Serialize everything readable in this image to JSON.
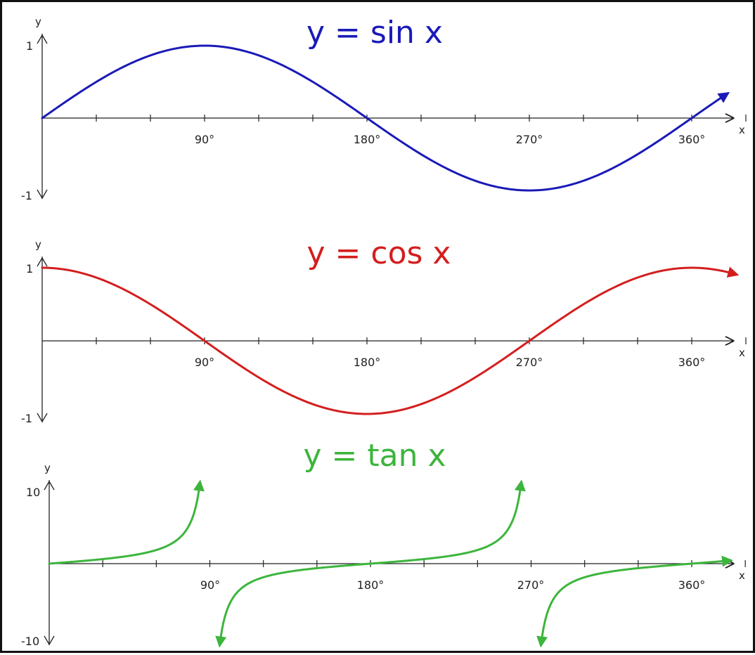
{
  "chart_data": [
    {
      "type": "line",
      "title": "y = sin x",
      "color": "#1a1ab8",
      "function": "sin",
      "xlabel": "x",
      "ylabel": "y",
      "xlim": [
        0,
        405
      ],
      "ylim": [
        -1,
        1
      ],
      "x_ticks": [
        90,
        180,
        270,
        360
      ],
      "x_tick_labels": [
        "90°",
        "180°",
        "270°",
        "360°"
      ],
      "y_tick_labels": [
        "1",
        "-1"
      ],
      "x": [
        0,
        30,
        60,
        90,
        120,
        150,
        180,
        210,
        240,
        270,
        300,
        330,
        360,
        380
      ],
      "y": [
        0,
        0.5,
        0.87,
        1,
        0.87,
        0.5,
        0,
        -0.5,
        -0.87,
        -1,
        -0.87,
        -0.5,
        0,
        0.34
      ]
    },
    {
      "type": "line",
      "title": "y = cos x",
      "color": "#d41e1e",
      "function": "cos",
      "xlabel": "x",
      "ylabel": "y",
      "xlim": [
        0,
        405
      ],
      "ylim": [
        -1,
        1
      ],
      "x_ticks": [
        90,
        180,
        270,
        360
      ],
      "x_tick_labels": [
        "90°",
        "180°",
        "270°",
        "360°"
      ],
      "y_tick_labels": [
        "1",
        "-1"
      ],
      "x": [
        0,
        30,
        60,
        90,
        120,
        150,
        180,
        210,
        240,
        270,
        300,
        330,
        360,
        385
      ],
      "y": [
        1,
        0.87,
        0.5,
        0,
        -0.5,
        -0.87,
        -1,
        -0.87,
        -0.5,
        0,
        0.5,
        0.87,
        1,
        0.91
      ]
    },
    {
      "type": "line",
      "title": "y = tan x",
      "color": "#3cb53c",
      "function": "tan",
      "xlabel": "x",
      "ylabel": "y",
      "xlim": [
        0,
        405
      ],
      "ylim": [
        -10,
        10
      ],
      "x_ticks": [
        90,
        180,
        270,
        360
      ],
      "x_tick_labels": [
        "90°",
        "180°",
        "270°",
        "360°"
      ],
      "y_tick_labels": [
        "10",
        "-10"
      ],
      "branches": [
        [
          0,
          84.5
        ],
        [
          95.5,
          264.5
        ],
        [
          275.5,
          382
        ]
      ],
      "x": [
        0,
        45,
        80,
        84.5,
        95.5,
        135,
        180,
        225,
        264.5,
        275.5,
        315,
        360,
        380
      ],
      "y": [
        0,
        1,
        5.67,
        10,
        -10,
        -1,
        0,
        1,
        10,
        -10,
        -1,
        0,
        0.36
      ]
    }
  ]
}
